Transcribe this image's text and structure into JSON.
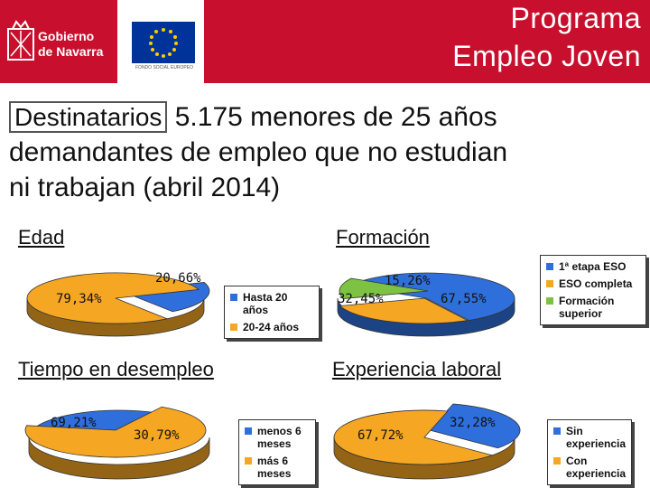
{
  "header": {
    "title_line1": "Programa",
    "title_line2": "Empleo Joven",
    "logo_text_line1": "Gobierno",
    "logo_text_line2": "de Navarra",
    "eu_caption": "FONDO SOCIAL EUROPEO",
    "brand_color": "#c8102e"
  },
  "intro": {
    "label": "Destinatarios",
    "line1_rest": " 5.175 menores de 25 años",
    "line2": "demandantes de empleo que no estudian",
    "line3": "ni trabajan (abril 2014)"
  },
  "sections": {
    "edad": "Edad",
    "formacion": "Formación",
    "tiempo": "Tiempo en desempleo",
    "experiencia": "Experiencia laboral"
  },
  "chart_data": [
    {
      "type": "pie",
      "title": "Edad",
      "labels": [
        "Hasta 20 años",
        "20-24 años"
      ],
      "values": [
        20.66,
        79.34
      ],
      "value_labels": [
        "20,66%",
        "79,34%"
      ],
      "colors": [
        "#2f6fdc",
        "#f5a623"
      ],
      "legend": "right"
    },
    {
      "type": "pie",
      "title": "Formación",
      "labels": [
        "1ª etapa ESO",
        "ESO completa",
        "Formación superior"
      ],
      "values": [
        67.55,
        32.45,
        15.26
      ],
      "value_labels": [
        "67,55%",
        "32,45%",
        "15,26%"
      ],
      "colors": [
        "#2f6fdc",
        "#f5a623",
        "#7dc242"
      ],
      "legend": "right"
    },
    {
      "type": "pie",
      "title": "Tiempo en desempleo",
      "labels": [
        "menos 6 meses",
        "más 6 meses"
      ],
      "values": [
        30.79,
        69.21
      ],
      "value_labels": [
        "30,79%",
        "69,21%"
      ],
      "colors": [
        "#2f6fdc",
        "#f5a623"
      ],
      "legend": "right"
    },
    {
      "type": "pie",
      "title": "Experiencia laboral",
      "labels": [
        "Sin experiencia",
        "Con experiencia"
      ],
      "values": [
        32.28,
        67.72
      ],
      "value_labels": [
        "32,28%",
        "67,72%"
      ],
      "colors": [
        "#2f6fdc",
        "#f5a623"
      ],
      "legend": "right"
    }
  ]
}
